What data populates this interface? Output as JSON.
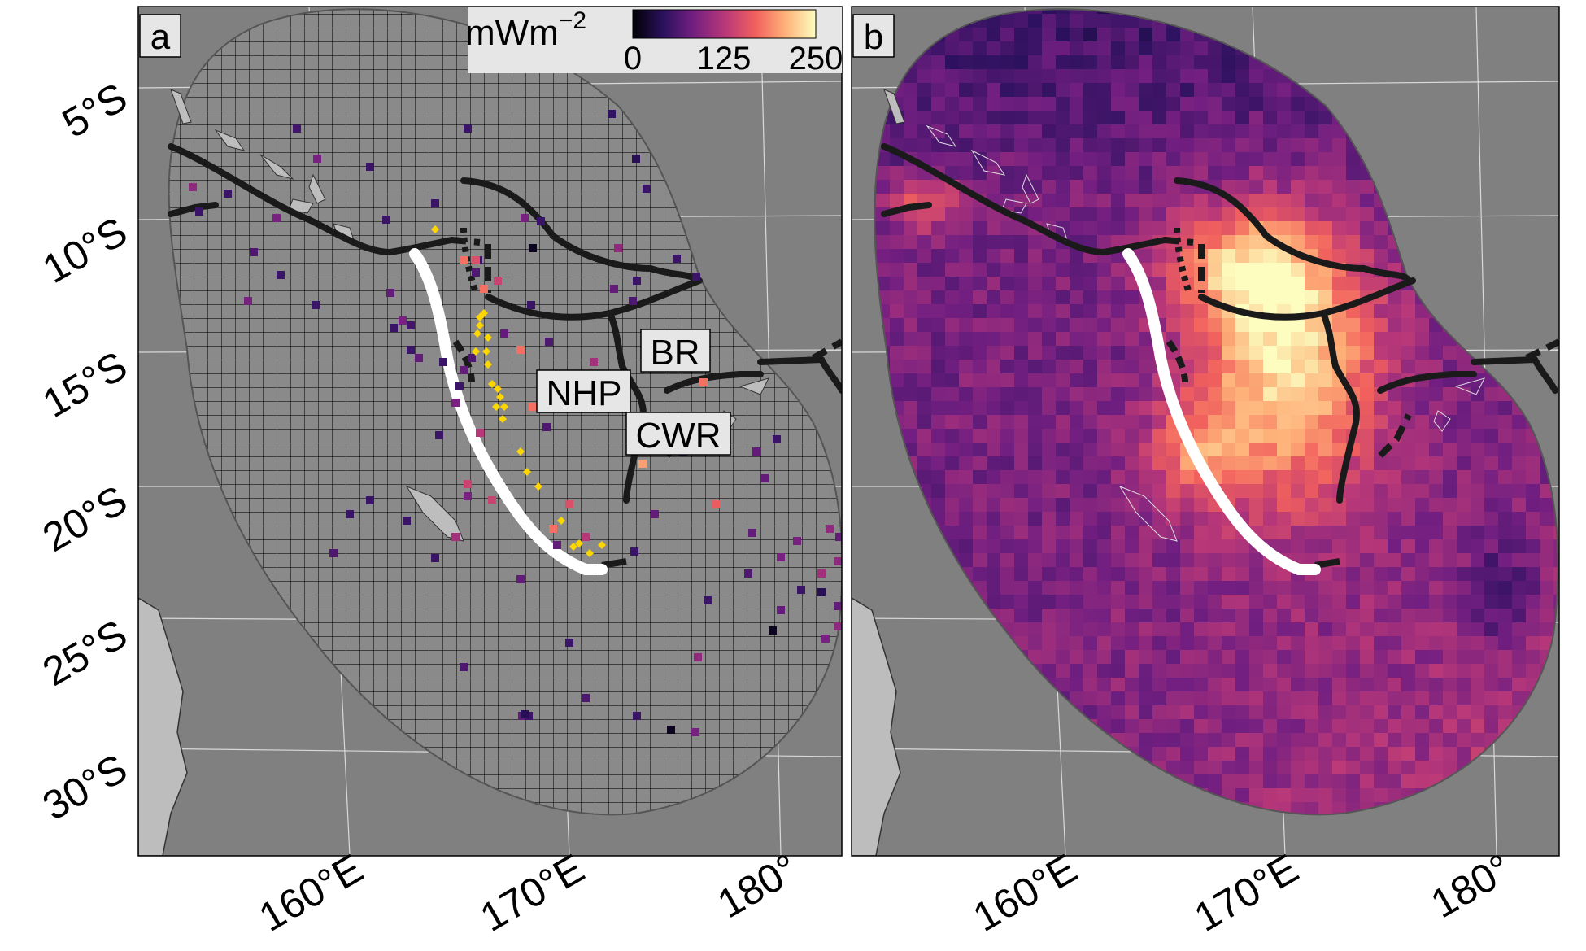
{
  "panels": [
    {
      "label": "a",
      "kind": "observations"
    },
    {
      "label": "b",
      "kind": "interpolated"
    }
  ],
  "latitude_labels": [
    "5°S",
    "10°S",
    "15°S",
    "20°S",
    "25°S",
    "30°S"
  ],
  "longitude_labels": [
    "160°E",
    "170°E",
    "180°"
  ],
  "legend": {
    "title": "mWm",
    "title_superscript": "−2",
    "ticks": [
      "0",
      "125",
      "250"
    ],
    "colormap": [
      "#000004",
      "#2c115f",
      "#721f81",
      "#b73779",
      "#f1605d",
      "#feb078",
      "#fcfdbf"
    ]
  },
  "plate_labels": [
    "NHP",
    "BR",
    "CWR"
  ],
  "colors": {
    "ocean": "#808080",
    "land": "#bdbdbd",
    "grid_line": "#000000",
    "trench": "#ffffff",
    "boundary": "#1a1a1a",
    "yellow_points": "#ffd700"
  }
}
